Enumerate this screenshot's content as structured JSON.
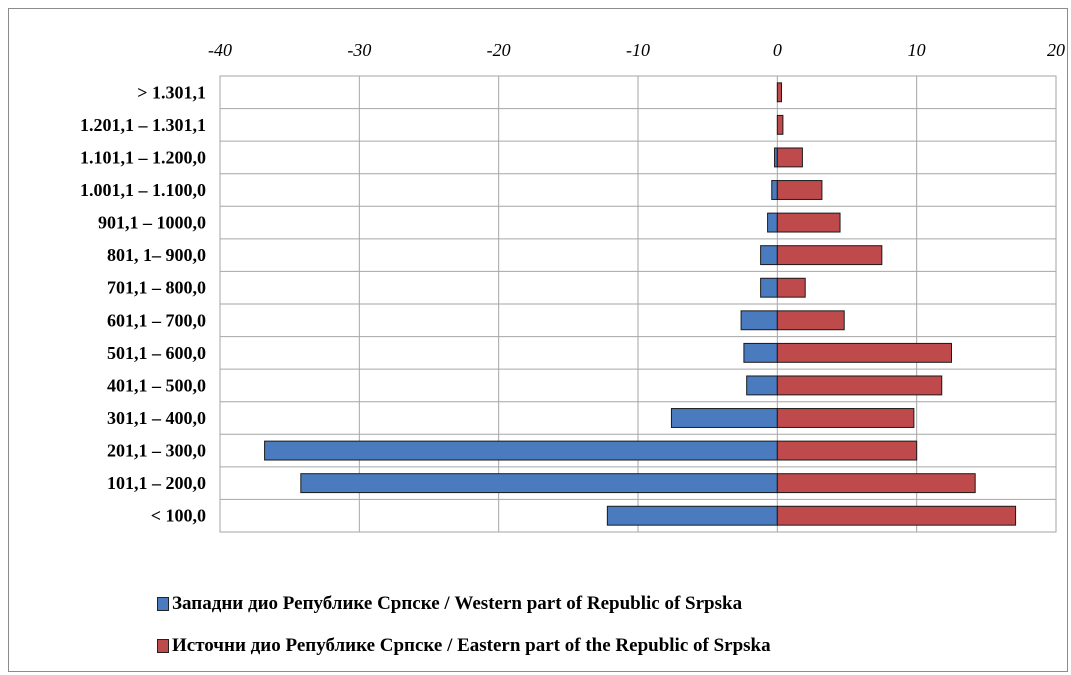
{
  "chart_data": {
    "type": "bar",
    "orientation": "horizontal",
    "title": "",
    "xlabel": "",
    "ylabel": "",
    "xlim": [
      -40,
      20
    ],
    "xticks": [
      "-40",
      "-30",
      "-20",
      "-10",
      "0",
      "10",
      "20"
    ],
    "x_axis_position": "top",
    "grid": true,
    "legend_position": "bottom",
    "categories": [
      "> 1.301,1",
      "1.201,1 – 1.301,1",
      "1.101,1 – 1.200,0",
      "1.001,1 – 1.100,0",
      "901,1 – 1000,0",
      "801, 1– 900,0",
      "701,1 – 800,0",
      "601,1 – 700,0",
      "501,1 – 600,0",
      "401,1 – 500,0",
      "301,1 – 400,0",
      "201,1 – 300,0",
      "101,1 – 200,0",
      "< 100,0"
    ],
    "series": [
      {
        "name": "Западни дио Републике Српске / Western part of Republic of Srpska",
        "color": "#4a7bbf",
        "values": [
          0,
          0,
          -0.2,
          -0.4,
          -0.7,
          -1.2,
          -1.2,
          -2.6,
          -2.4,
          -2.2,
          -7.6,
          -36.8,
          -34.2,
          -12.2
        ]
      },
      {
        "name": "Источни дио Републике Српске / Eastern part of the Republic of Srpska",
        "color": "#bf4a4c",
        "values": [
          0.3,
          0.4,
          1.8,
          3.2,
          4.5,
          7.5,
          2.0,
          4.8,
          12.5,
          11.8,
          9.8,
          10.0,
          14.2,
          17.1
        ]
      }
    ]
  }
}
